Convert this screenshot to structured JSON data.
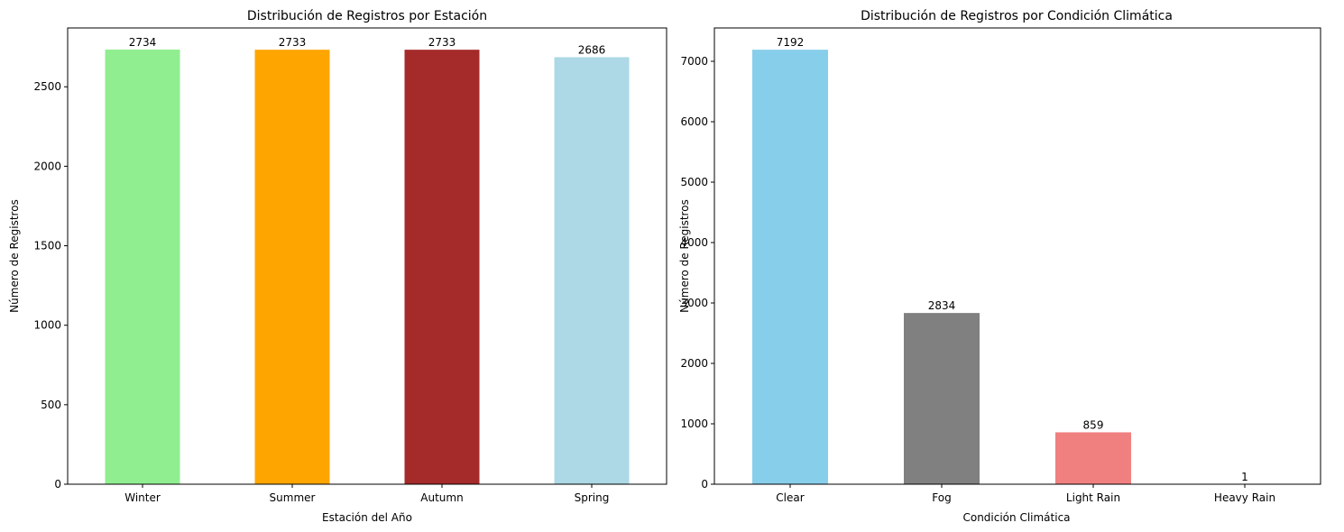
{
  "chart_data": [
    {
      "type": "bar",
      "title": "Distribución de Registros por Estación",
      "xlabel": "Estación del Año",
      "ylabel": "Número de Registros",
      "categories": [
        "Winter",
        "Summer",
        "Autumn",
        "Spring"
      ],
      "values": [
        2734,
        2733,
        2733,
        2686
      ],
      "colors": [
        "#90ee90",
        "#ffa500",
        "#a52a2a",
        "#add8e6"
      ],
      "ylim": [
        0,
        2870
      ],
      "yticks": [
        0,
        500,
        1000,
        1500,
        2000,
        2500
      ],
      "grid": false,
      "data_labels": true
    },
    {
      "type": "bar",
      "title": "Distribución de Registros por Condición Climática",
      "xlabel": "Condición Climática",
      "ylabel": "Número de Registros",
      "categories": [
        "Clear",
        "Fog",
        "Light Rain",
        "Heavy Rain"
      ],
      "values": [
        7192,
        2834,
        859,
        1
      ],
      "colors": [
        "#87ceeb",
        "#808080",
        "#f08080",
        "#8b0000"
      ],
      "ylim": [
        0,
        7552
      ],
      "yticks": [
        0,
        1000,
        2000,
        3000,
        4000,
        5000,
        6000,
        7000
      ],
      "grid": false,
      "data_labels": true
    }
  ]
}
